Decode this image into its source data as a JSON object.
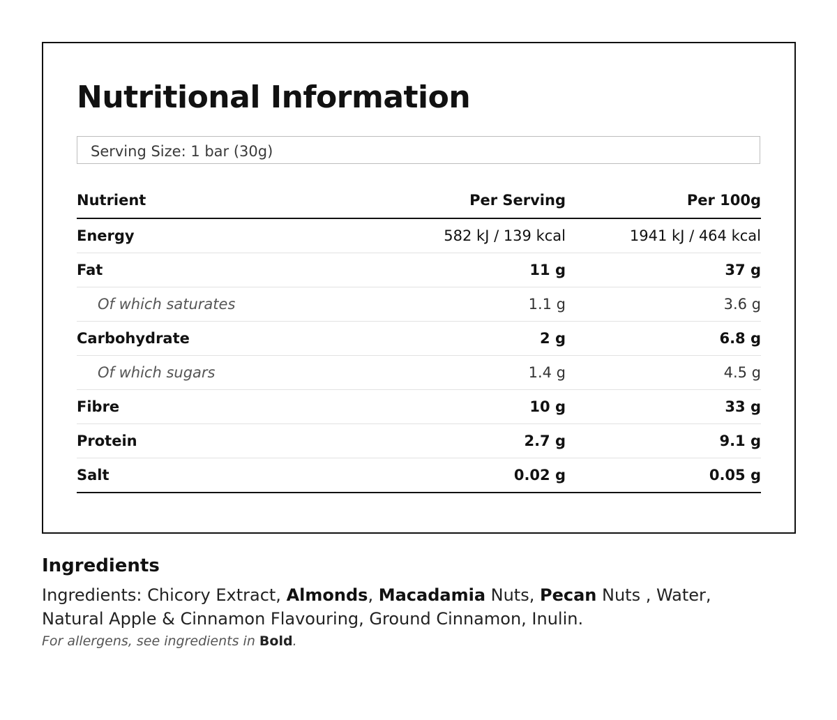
{
  "panel": {
    "title": "Nutritional Information",
    "serving_size": "Serving Size: 1 bar (30g)",
    "table": {
      "headers": {
        "nutrient": "Nutrient",
        "per_serving": "Per Serving",
        "per_100g": "Per 100g"
      },
      "rows": [
        {
          "nutrient": "Energy",
          "per_serving": "582 kJ / 139 kcal",
          "per_100g": "1941 kJ / 464 kcal"
        },
        {
          "nutrient": "Fat",
          "per_serving": "11 g",
          "per_100g": "37 g"
        },
        {
          "nutrient": "Of which saturates",
          "per_serving": "1.1 g",
          "per_100g": "3.6 g"
        },
        {
          "nutrient": "Carbohydrate",
          "per_serving": "2 g",
          "per_100g": "6.8 g"
        },
        {
          "nutrient": "Of which sugars",
          "per_serving": "1.4 g",
          "per_100g": "4.5 g"
        },
        {
          "nutrient": "Fibre",
          "per_serving": "10 g",
          "per_100g": "33 g"
        },
        {
          "nutrient": "Protein",
          "per_serving": "2.7 g",
          "per_100g": "9.1 g"
        },
        {
          "nutrient": "Salt",
          "per_serving": "0.02 g",
          "per_100g": "0.05 g"
        }
      ]
    }
  },
  "ingredients": {
    "heading": "Ingredients",
    "parts": [
      {
        "text": "Ingredients: Chicory Extract, ",
        "bold": false
      },
      {
        "text": "Almonds",
        "bold": true
      },
      {
        "text": ", ",
        "bold": false
      },
      {
        "text": "Macadamia",
        "bold": true
      },
      {
        "text": " Nuts, ",
        "bold": false
      },
      {
        "text": "Pecan",
        "bold": true
      },
      {
        "text": " Nuts , Water, Natural Apple & Cinnamon Flavouring, Ground Cinnamon, Inulin.",
        "bold": false
      }
    ],
    "allergen_note_prefix": "For allergens, see ingredients in ",
    "allergen_note_bold": "Bold",
    "allergen_note_suffix": "."
  }
}
